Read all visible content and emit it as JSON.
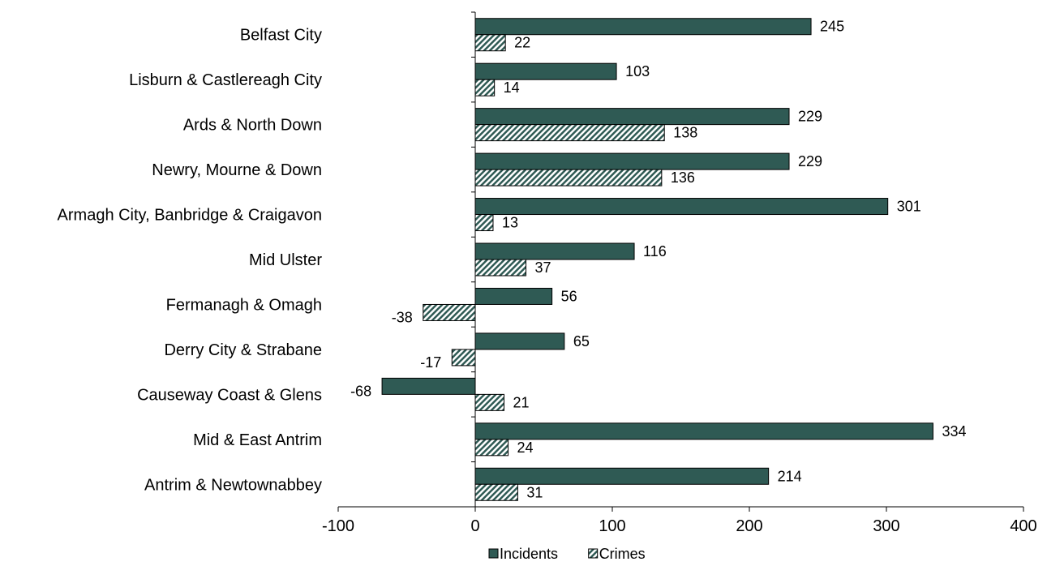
{
  "chart_data": {
    "type": "bar",
    "orientation": "horizontal",
    "title": "",
    "xlabel": "",
    "ylabel": "",
    "categories": [
      "Belfast City",
      "Lisburn & Castlereagh City",
      "Ards & North Down",
      "Newry, Mourne & Down",
      "Armagh City, Banbridge & Craigavon",
      "Mid Ulster",
      "Fermanagh & Omagh",
      "Derry City & Strabane",
      "Causeway Coast & Glens",
      "Mid & East Antrim",
      "Antrim & Newtownabbey"
    ],
    "series": [
      {
        "name": "Incidents",
        "color": "#2f5a54",
        "pattern": "solid",
        "values": [
          245,
          103,
          229,
          229,
          301,
          116,
          56,
          65,
          -68,
          334,
          214
        ]
      },
      {
        "name": "Crimes",
        "color": "#2f5a54",
        "pattern": "diagonal-hatch",
        "values": [
          22,
          14,
          138,
          136,
          13,
          37,
          -38,
          -17,
          21,
          24,
          31
        ]
      }
    ],
    "xlim": [
      -100,
      400
    ],
    "xticks": [
      -100,
      0,
      100,
      200,
      300,
      400
    ],
    "grid": false,
    "legend": "bottom-center",
    "data_labels": true
  }
}
